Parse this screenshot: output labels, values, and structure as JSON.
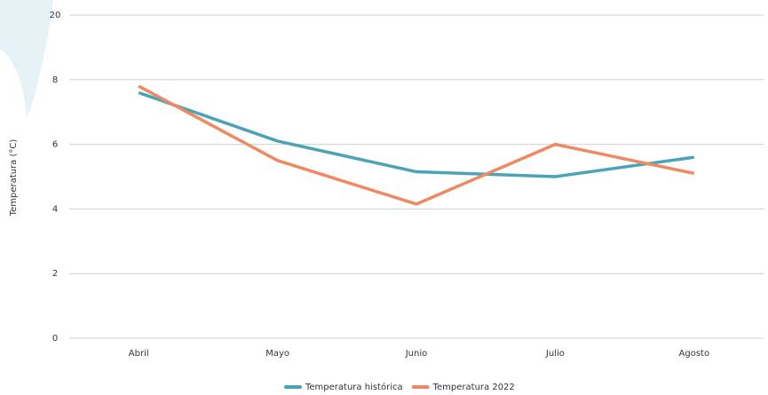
{
  "chart_data": {
    "type": "line",
    "y_label": "Temperatura (°C)",
    "categories": [
      "Abril",
      "Mayo",
      "Junio",
      "Julio",
      "Agosto"
    ],
    "series": [
      {
        "name": "Temperatura histórica",
        "color": "#4ba3b8",
        "values": [
          7.6,
          6.1,
          5.15,
          5.0,
          5.6
        ]
      },
      {
        "name": "Temperatura 2022",
        "color": "#ee8a63",
        "values": [
          7.8,
          5.5,
          4.15,
          6.0,
          5.1
        ]
      }
    ],
    "ylim": [
      0,
      20
    ],
    "yticks": [
      0,
      2,
      4,
      6,
      8,
      20
    ],
    "grid": true,
    "legend": "bottom"
  }
}
